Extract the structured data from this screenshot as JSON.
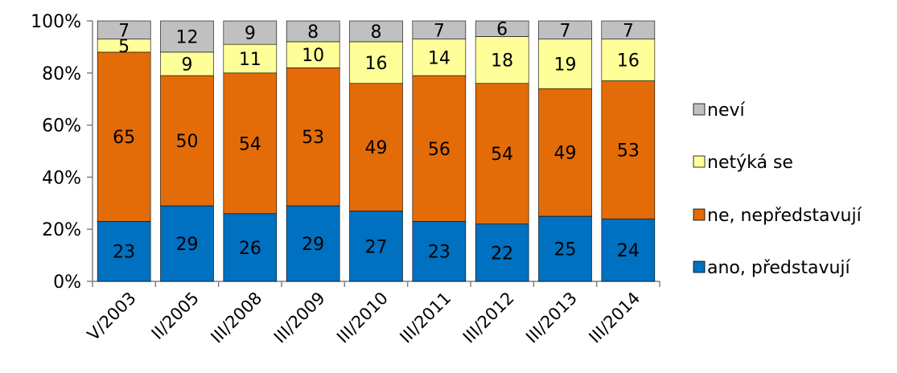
{
  "chart_data": {
    "type": "bar",
    "stacked": true,
    "percent": true,
    "categories": [
      "V/2003",
      "II/2005",
      "III/2008",
      "III/2009",
      "III/2010",
      "III/2011",
      "III/2012",
      "III/2013",
      "III/2014"
    ],
    "series": [
      {
        "name": "ano, představují",
        "color": "#0070C0",
        "values": [
          23,
          29,
          26,
          29,
          27,
          23,
          22,
          25,
          24
        ]
      },
      {
        "name": "ne, nepředstavují",
        "color": "#E36C09",
        "values": [
          65,
          50,
          54,
          53,
          49,
          56,
          54,
          49,
          53
        ]
      },
      {
        "name": "netýká se",
        "color": "#FFFF99",
        "values": [
          5,
          9,
          11,
          10,
          16,
          14,
          18,
          19,
          16
        ]
      },
      {
        "name": "neví",
        "color": "#C0C0C0",
        "values": [
          7,
          12,
          9,
          8,
          8,
          7,
          6,
          7,
          7
        ]
      }
    ],
    "yticks": [
      "0%",
      "20%",
      "40%",
      "60%",
      "80%",
      "100%"
    ],
    "ylim": [
      0,
      100
    ],
    "legend_position": "right",
    "grid": false
  }
}
